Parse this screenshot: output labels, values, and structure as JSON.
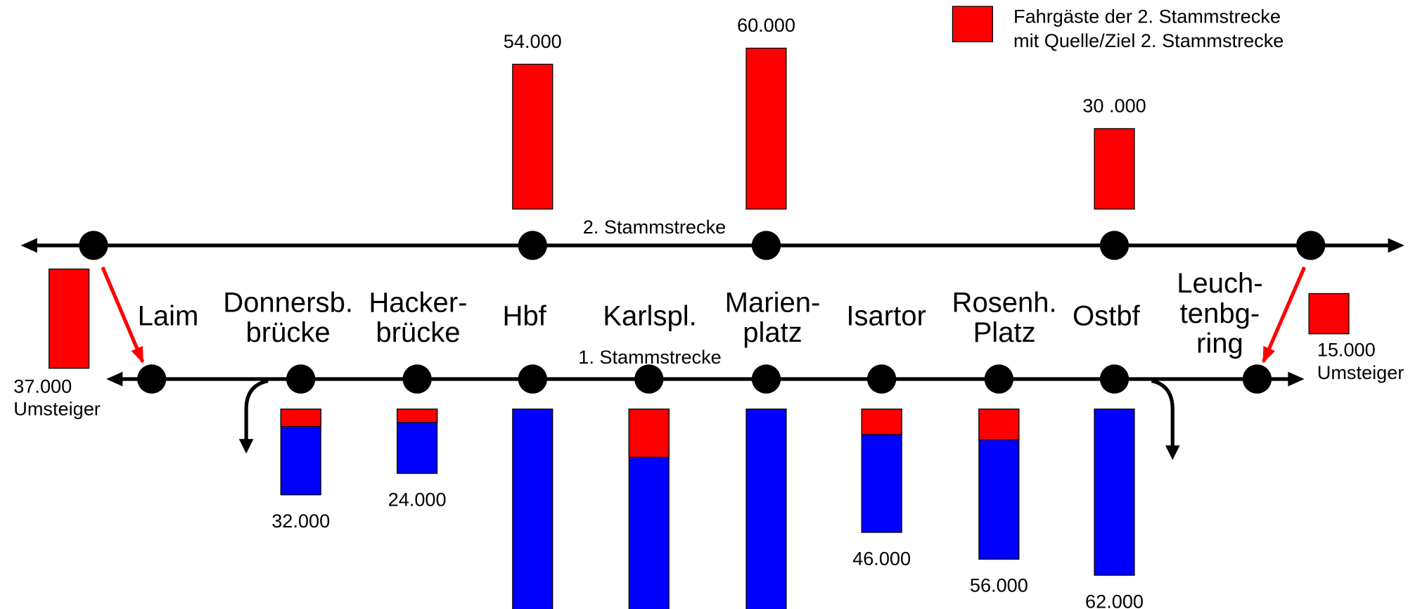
{
  "legend": {
    "lines": [
      "Fahrgäste der 2. Stammstrecke",
      "mit Quelle/Ziel 2. Stammstrecke"
    ],
    "color": "#ff0000"
  },
  "line2_label": "2. Stammstrecke",
  "line1_label": "1. Stammstrecke",
  "bar_colors": {
    "own": "#ff0000",
    "through": "#0000ff"
  },
  "second_line_bars": [
    {
      "value": 54000,
      "label": "54.000"
    },
    {
      "value": 60000,
      "label": "60.000"
    },
    {
      "value": 30000,
      "label": "30 .000"
    }
  ],
  "stations": [
    {
      "name": [
        "Laim"
      ]
    },
    {
      "name": [
        "Donnersb.",
        "brücke"
      ],
      "total": 32000,
      "own": 6500,
      "label": "32.000"
    },
    {
      "name": [
        "Hacker-",
        "brücke"
      ],
      "total": 24000,
      "own": 5000,
      "label": "24.000"
    },
    {
      "name": [
        "Hbf"
      ],
      "total": 75000
    },
    {
      "name": [
        "Karlspl."
      ],
      "total": 75000,
      "own": 18000
    },
    {
      "name": [
        "Marien-",
        "platz"
      ],
      "total": 75000
    },
    {
      "name": [
        "Isartor"
      ],
      "total": 46000,
      "own": 9500,
      "label": "46.000"
    },
    {
      "name": [
        "Rosenh.",
        "Platz"
      ],
      "total": 56000,
      "own": 11500,
      "label": "56.000"
    },
    {
      "name": [
        "Ostbf"
      ],
      "total": 62000,
      "label": "62.000"
    },
    {
      "name": [
        "Leuch-",
        "tenbg-",
        "ring"
      ]
    }
  ],
  "transfers": [
    {
      "value": 37000,
      "label": "37.000",
      "note": "Umsteiger"
    },
    {
      "value": 15000,
      "label": "15.000",
      "note": "Umsteiger"
    }
  ]
}
